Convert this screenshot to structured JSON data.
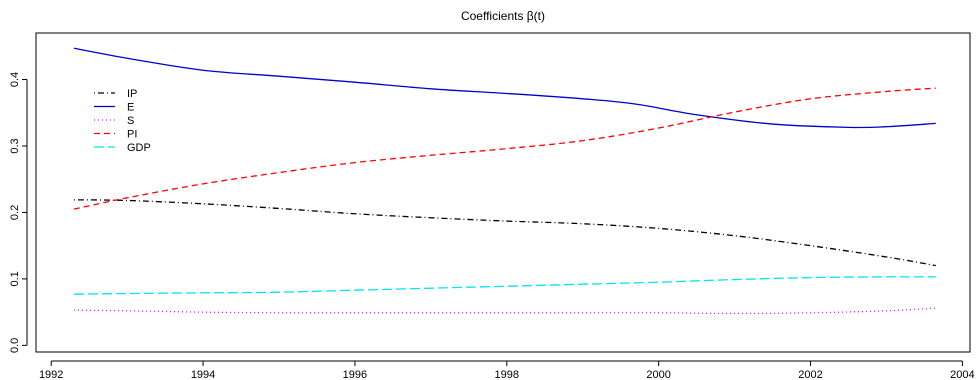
{
  "chart_data": {
    "type": "line",
    "title": "Coefficients β(t)",
    "xlabel": "",
    "ylabel": "",
    "xlim": [
      1991.8,
      2004.1
    ],
    "ylim": [
      -0.01,
      0.47
    ],
    "x_ticks": [
      "1992",
      "1994",
      "1996",
      "1998",
      "2000",
      "2002",
      "2004"
    ],
    "y_ticks": [
      "0.0",
      "0.1",
      "0.2",
      "0.3",
      "0.4"
    ],
    "grid": false,
    "legend_position": "top-left",
    "series": [
      {
        "name": "IP",
        "color": "#000000",
        "dash": "dotdash",
        "x": [
          1992.3,
          1993.0,
          1994.0,
          1995.0,
          1996.0,
          1997.0,
          1998.0,
          1999.0,
          2000.0,
          2001.0,
          2002.0,
          2003.0,
          2003.65
        ],
        "y": [
          0.219,
          0.218,
          0.213,
          0.206,
          0.198,
          0.192,
          0.187,
          0.183,
          0.176,
          0.165,
          0.15,
          0.133,
          0.12
        ]
      },
      {
        "name": "E",
        "color": "#0000cc",
        "dash": "solid",
        "x": [
          1992.3,
          1993.0,
          1994.0,
          1995.0,
          1996.0,
          1997.0,
          1998.0,
          1999.0,
          1999.7,
          2000.5,
          2001.5,
          2002.5,
          2003.0,
          2003.65
        ],
        "y": [
          0.447,
          0.432,
          0.414,
          0.405,
          0.396,
          0.386,
          0.379,
          0.371,
          0.363,
          0.347,
          0.333,
          0.328,
          0.329,
          0.334
        ]
      },
      {
        "name": "S",
        "color": "#ff00ff",
        "dash": "dotted",
        "x": [
          1992.3,
          1993.0,
          1994.0,
          1995.0,
          1996.0,
          1997.0,
          1998.0,
          1999.0,
          2000.0,
          2001.0,
          2002.0,
          2003.0,
          2003.65
        ],
        "y": [
          0.053,
          0.052,
          0.05,
          0.049,
          0.049,
          0.049,
          0.049,
          0.049,
          0.049,
          0.048,
          0.049,
          0.052,
          0.056
        ]
      },
      {
        "name": "PI",
        "color": "#ff0000",
        "dash": "dashed",
        "x": [
          1992.3,
          1993.0,
          1994.0,
          1995.0,
          1996.0,
          1997.0,
          1998.0,
          1999.0,
          2000.0,
          2001.0,
          2002.0,
          2003.0,
          2003.65
        ],
        "y": [
          0.205,
          0.222,
          0.243,
          0.26,
          0.275,
          0.286,
          0.296,
          0.308,
          0.327,
          0.351,
          0.371,
          0.382,
          0.387
        ]
      },
      {
        "name": "GDP",
        "color": "#00e5ee",
        "dash": "longdash",
        "x": [
          1992.3,
          1993.0,
          1994.0,
          1995.0,
          1996.0,
          1997.0,
          1998.0,
          1999.0,
          2000.0,
          2001.0,
          2002.0,
          2003.0,
          2003.65
        ],
        "y": [
          0.077,
          0.078,
          0.079,
          0.08,
          0.083,
          0.086,
          0.089,
          0.092,
          0.095,
          0.099,
          0.102,
          0.103,
          0.103
        ]
      }
    ]
  }
}
